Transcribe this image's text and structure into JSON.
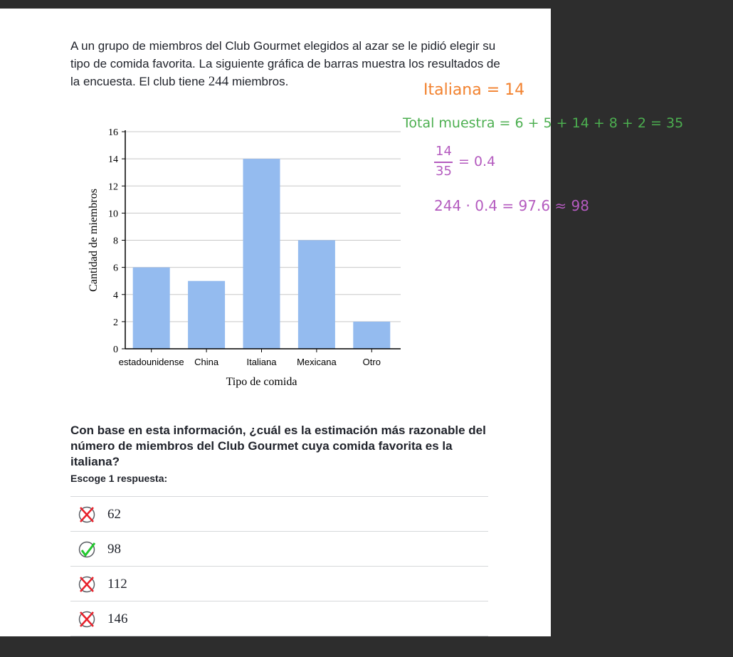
{
  "intro": {
    "text_before": "A un grupo de miembros del Club Gourmet elegidos al azar se le pidió elegir su tipo de comida favorita. La siguiente gráfica de barras muestra los resultados de la encuesta. El club tiene ",
    "members": "244",
    "text_after": " miembros."
  },
  "chart_data": {
    "type": "bar",
    "categories": [
      "estadounidense",
      "China",
      "Italiana",
      "Mexicana",
      "Otro"
    ],
    "values": [
      6,
      5,
      14,
      8,
      2
    ],
    "title": "",
    "xlabel": "Tipo de comida",
    "ylabel": "Cantidad de miembros",
    "ylim": [
      0,
      16
    ],
    "yticks": [
      0,
      2,
      4,
      6,
      8,
      10,
      12,
      14,
      16
    ],
    "grid": true,
    "bar_color": "#94bbef"
  },
  "question": {
    "text": "Con base en esta información, ¿cuál es la estimación más razonable del número de miembros del Club Gourmet cuya comida favorita es la italiana?",
    "instruction": "Escoge 1 respuesta:"
  },
  "choices": [
    {
      "label": "62",
      "mark": "x-mark-icon"
    },
    {
      "label": "98",
      "mark": "check-mark-icon"
    },
    {
      "label": "112",
      "mark": "x-mark-icon"
    },
    {
      "label": "146",
      "mark": "x-mark-icon"
    }
  ],
  "annotations": {
    "line1": "Italiana = 14",
    "line2": "Total muestra = 6 + 5 + 14 + 8 + 2 = 35",
    "frac_num": "14",
    "frac_den": "35",
    "frac_result": "= 0.4",
    "line4": "244 · 0.4 = 97.6 ≈ 98",
    "color_orange": "#f2822f",
    "color_green": "#4caf50",
    "color_purple": "#b45bbf"
  }
}
